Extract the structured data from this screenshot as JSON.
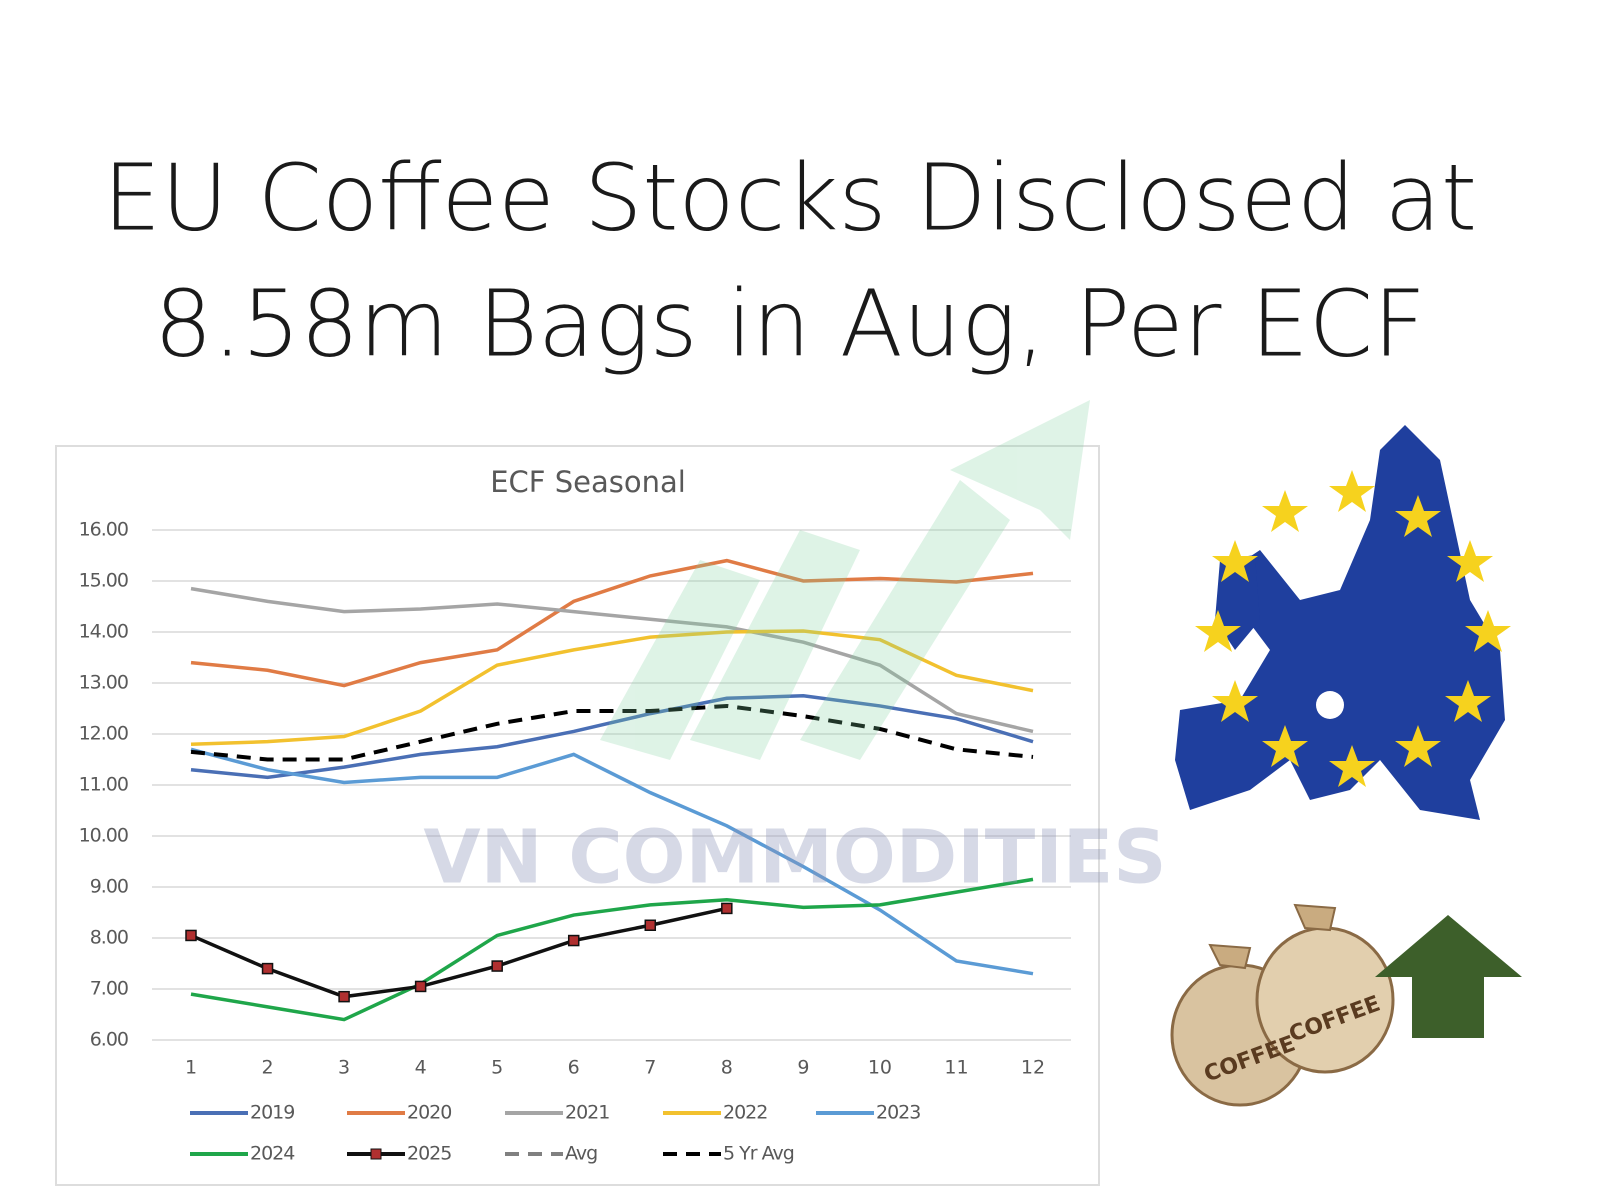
{
  "headline": [
    "EU Coffee Stocks Disclosed at",
    "8.58m Bags in Aug, Per ECF"
  ],
  "watermark": "VN COMMODITIES",
  "bag_label": "COFFEE",
  "chart_data": {
    "type": "line",
    "title": "ECF Seasonal",
    "categories": [
      "1",
      "2",
      "3",
      "4",
      "5",
      "6",
      "7",
      "8",
      "9",
      "10",
      "11",
      "12"
    ],
    "ylim": [
      6,
      16
    ],
    "yticks": [
      {
        "value": 6,
        "label": "6.00"
      },
      {
        "value": 7,
        "label": "7.00"
      },
      {
        "value": 8,
        "label": "8.00"
      },
      {
        "value": 9,
        "label": "9.00"
      },
      {
        "value": 10,
        "label": "10.00"
      },
      {
        "value": 11,
        "label": "11.00"
      },
      {
        "value": 12,
        "label": "12.00"
      },
      {
        "value": 13,
        "label": "13.00"
      },
      {
        "value": 14,
        "label": "14.00"
      },
      {
        "value": 15,
        "label": "15.00"
      },
      {
        "value": 16,
        "label": "16.00"
      }
    ],
    "grid": true,
    "series": [
      {
        "name": "2019",
        "color": "#4a6fb5",
        "values": [
          11.3,
          11.15,
          11.35,
          11.6,
          11.75,
          12.05,
          12.4,
          12.7,
          12.75,
          12.55,
          12.3,
          11.85
        ]
      },
      {
        "name": "2020",
        "color": "#e07b45",
        "values": [
          13.4,
          13.25,
          12.95,
          13.4,
          13.65,
          14.6,
          15.1,
          15.4,
          15.0,
          15.05,
          14.98,
          15.15
        ]
      },
      {
        "name": "2021",
        "color": "#a5a5a5",
        "values": [
          14.85,
          14.6,
          14.4,
          14.45,
          14.55,
          14.4,
          14.25,
          14.1,
          13.8,
          13.35,
          12.4,
          12.05
        ]
      },
      {
        "name": "2022",
        "color": "#f2c12e",
        "values": [
          11.8,
          11.85,
          11.95,
          12.45,
          13.35,
          13.65,
          13.9,
          14.0,
          14.02,
          13.85,
          13.15,
          12.85
        ]
      },
      {
        "name": "2023",
        "color": "#5b9bd5",
        "values": [
          11.7,
          11.3,
          11.05,
          11.15,
          11.15,
          11.6,
          10.85,
          10.2,
          9.4,
          8.55,
          7.55,
          7.3
        ]
      },
      {
        "name": "2024",
        "color": "#1fa64a",
        "values": [
          6.9,
          6.65,
          6.4,
          7.1,
          8.05,
          8.45,
          8.65,
          8.75,
          8.6,
          8.65,
          8.9,
          9.15
        ]
      },
      {
        "name": "2025",
        "color": "#111111",
        "marker": "square",
        "marker_color": "#b03030",
        "values": [
          8.05,
          7.4,
          6.85,
          7.05,
          7.45,
          7.95,
          8.25,
          8.58,
          null,
          null,
          null,
          null
        ]
      },
      {
        "name": "Avg",
        "color": "#808080",
        "dash": true,
        "values": [
          null,
          null,
          null,
          null,
          null,
          null,
          null,
          null,
          null,
          null,
          null,
          null
        ]
      },
      {
        "name": "5 Yr Avg",
        "color": "#000000",
        "dash": true,
        "values": [
          11.65,
          11.5,
          11.5,
          11.85,
          12.2,
          12.45,
          12.45,
          12.55,
          12.35,
          12.1,
          11.7,
          11.55
        ]
      }
    ]
  }
}
